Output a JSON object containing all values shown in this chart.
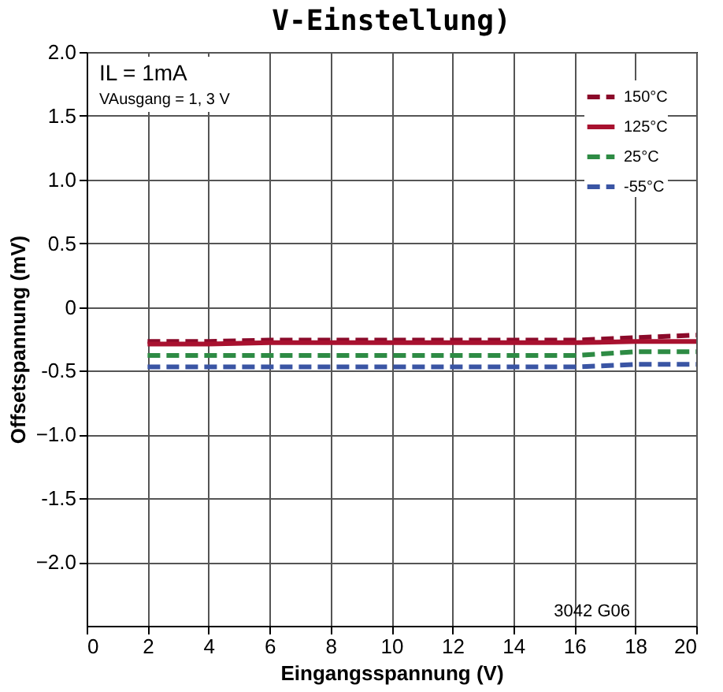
{
  "chart_data": {
    "type": "line",
    "title": "V-Einstellung)",
    "xlabel": "Eingangsspannung (V)",
    "ylabel": "Offsetspannung (mV)",
    "annotations": [
      "IL = 1mA",
      "VAusgang = 1, 3 V",
      "3042 G06"
    ],
    "x": [
      2,
      4,
      6,
      8,
      10,
      12,
      14,
      16,
      18,
      20
    ],
    "series": [
      {
        "name": "150°C",
        "color": "#8b0a2a",
        "line_style": "dashed",
        "values": [
          -0.27,
          -0.27,
          -0.26,
          -0.26,
          -0.26,
          -0.26,
          -0.26,
          -0.26,
          -0.24,
          -0.22
        ]
      },
      {
        "name": "125°C",
        "color": "#a8112f",
        "line_style": "solid",
        "values": [
          -0.29,
          -0.29,
          -0.28,
          -0.28,
          -0.28,
          -0.28,
          -0.28,
          -0.28,
          -0.27,
          -0.27
        ]
      },
      {
        "name": "25°C",
        "color": "#2e8b44",
        "line_style": "dashed",
        "values": [
          -0.38,
          -0.38,
          -0.38,
          -0.38,
          -0.38,
          -0.38,
          -0.38,
          -0.38,
          -0.35,
          -0.35
        ]
      },
      {
        "name": "-55°C",
        "color": "#3a55a4",
        "line_style": "dashed",
        "values": [
          -0.47,
          -0.47,
          -0.47,
          -0.47,
          -0.47,
          -0.47,
          -0.47,
          -0.47,
          -0.45,
          -0.45
        ]
      }
    ],
    "xlim": [
      0,
      20
    ],
    "xticks": [
      0,
      2,
      4,
      6,
      8,
      10,
      12,
      14,
      16,
      18,
      20
    ],
    "ylim": [
      -2.5,
      2.0
    ],
    "yticks": [
      {
        "value": -2,
        "label": "−2.0"
      },
      -1.5,
      {
        "value": -1,
        "label": "−1.0"
      },
      -0.5,
      0,
      0.5,
      {
        "value": 1,
        "label": "1.0"
      },
      1.5,
      {
        "value": 2,
        "label": "2.0"
      }
    ],
    "grid": true,
    "legend": "top right",
    "marker": "none"
  }
}
